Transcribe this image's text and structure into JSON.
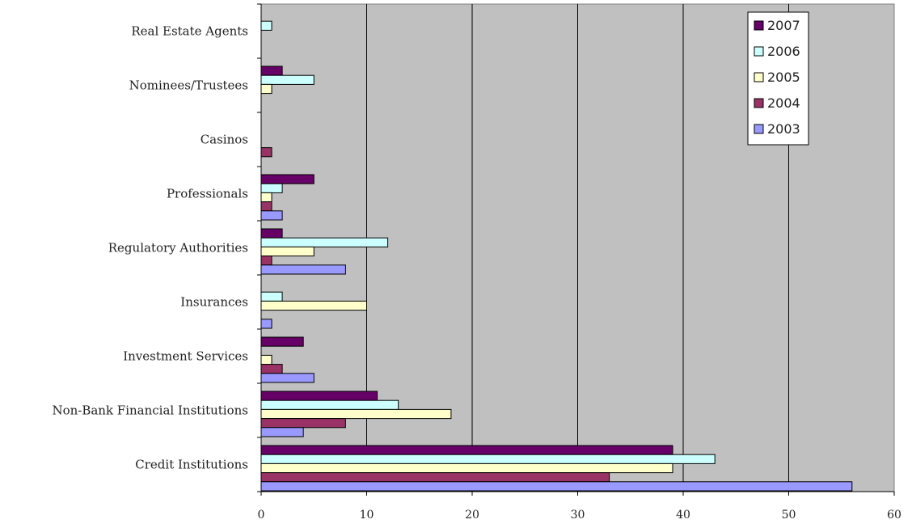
{
  "chart_data": {
    "type": "bar",
    "orientation": "horizontal",
    "title": "",
    "xlabel": "",
    "ylabel": "",
    "xlim": [
      0,
      60
    ],
    "x_ticks": [
      "0",
      "10",
      "20",
      "30",
      "40",
      "50",
      "60"
    ],
    "grid": "vertical",
    "legend_position": "top-right",
    "categories": [
      "Real Estate Agents",
      "Nominees/Trustees",
      "Casinos",
      "Professionals",
      "Regulatory Authorities",
      "Insurances",
      "Investment Services",
      "Non-Bank Financial Institutions",
      "Credit Institutions"
    ],
    "series": [
      {
        "name": "2007",
        "color": "#660066",
        "values": [
          0,
          2,
          0,
          5,
          2,
          0,
          4,
          11,
          39
        ]
      },
      {
        "name": "2006",
        "color": "#CCFFFF",
        "values": [
          1,
          5,
          0,
          2,
          12,
          2,
          0,
          13,
          43
        ]
      },
      {
        "name": "2005",
        "color": "#FFFFCC",
        "values": [
          0,
          1,
          0,
          1,
          5,
          10,
          1,
          18,
          39
        ]
      },
      {
        "name": "2004",
        "color": "#993366",
        "values": [
          0,
          0,
          1,
          1,
          1,
          0,
          2,
          8,
          33
        ]
      },
      {
        "name": "2003",
        "color": "#9999FF",
        "values": [
          0,
          0,
          0,
          2,
          8,
          1,
          5,
          4,
          56
        ]
      }
    ],
    "colors": {
      "plot_background": "#C0C0C0",
      "gridline": "#000000"
    }
  }
}
